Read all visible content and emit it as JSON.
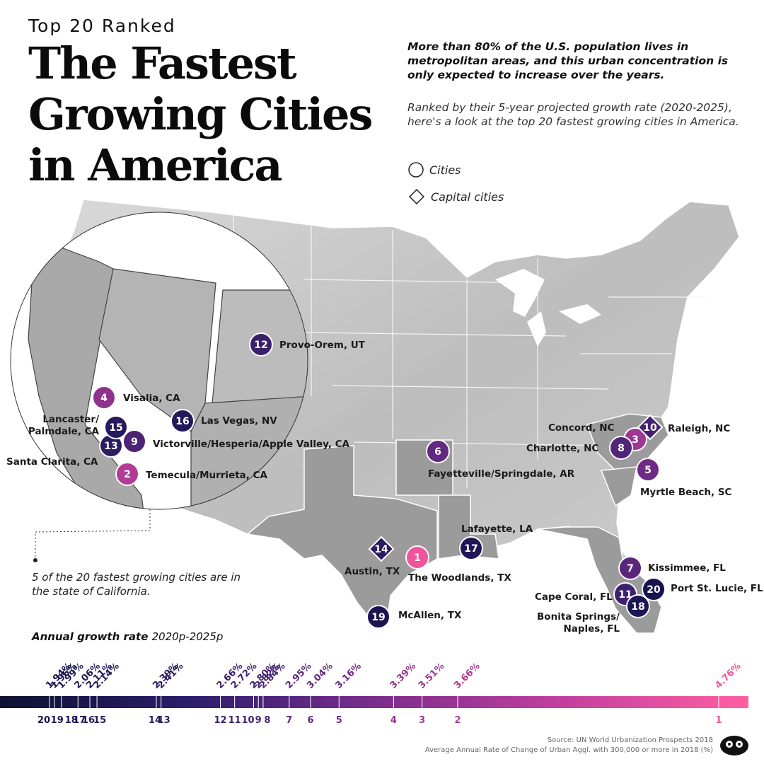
{
  "header": {
    "kicker": "Top 20 Ranked",
    "title_line1": "The Fastest",
    "title_line2": "Growing Cities",
    "title_line3": "in America",
    "lead": "More than 80% of the U.S. population lives in metropolitan areas, and this urban concentration is only expected to increase over the years.",
    "description": "Ranked by their 5-year projected growth rate (2020-2025), here's a look at the top 20 fastest growing cities in America."
  },
  "legend": {
    "cities": "Cities",
    "capitals": "Capital cities"
  },
  "map": {
    "callout_note": "5 of the 20 fastest growing cities are in the state of California.",
    "cities": [
      {
        "rank": 1,
        "name": "The Woodlands, TX",
        "growth": "4.76%",
        "capital": false,
        "color": "#f0549a"
      },
      {
        "rank": 2,
        "name": "Temecula/Murrieta, CA",
        "growth": "3.66%",
        "capital": false,
        "color": "#b03c98"
      },
      {
        "rank": 3,
        "name": "Concord, NC",
        "growth": "3.51%",
        "capital": false,
        "color": "#9c3793"
      },
      {
        "rank": 4,
        "name": "Visalia, CA",
        "growth": "3.39%",
        "capital": false,
        "color": "#8e338d"
      },
      {
        "rank": 5,
        "name": "Myrtle Beach, SC",
        "growth": "3.16%",
        "capital": false,
        "color": "#6e2a84"
      },
      {
        "rank": 6,
        "name": "Fayetteville/Springdale, AR",
        "growth": "3.04%",
        "capital": false,
        "color": "#63287f"
      },
      {
        "rank": 7,
        "name": "Kissimmee, FL",
        "growth": "2.95%",
        "capital": false,
        "color": "#5a267b"
      },
      {
        "rank": 8,
        "name": "Charlotte, NC",
        "growth": "2.84%",
        "capital": false,
        "color": "#512577"
      },
      {
        "rank": 9,
        "name": "Victorville/Hesperia/Apple Valley, CA",
        "growth": "2.82%",
        "capital": false,
        "color": "#4c2475"
      },
      {
        "rank": 10,
        "name": "Raleigh, NC",
        "growth": "2.80%",
        "capital": true,
        "color": "#432271"
      },
      {
        "rank": 11,
        "name": "Cape Coral, FL",
        "growth": "2.72%",
        "capital": false,
        "color": "#3e216e"
      },
      {
        "rank": 12,
        "name": "Provo-Orem, UT",
        "growth": "2.66%",
        "capital": false,
        "color": "#3a206b"
      },
      {
        "rank": 13,
        "name": "Santa Clarita, CA",
        "growth": "2.41%",
        "capital": false,
        "color": "#2e1c63"
      },
      {
        "rank": 14,
        "name": "Austin, TX",
        "growth": "2.39%",
        "capital": true,
        "color": "#2b1b61"
      },
      {
        "rank": 15,
        "name": "Lancaster/Palmdale, CA",
        "growth": "2.14%",
        "capital": false,
        "color": "#26195c"
      },
      {
        "rank": 16,
        "name": "Las Vegas, NV",
        "growth": "2.11%",
        "capital": false,
        "color": "#23185a"
      },
      {
        "rank": 17,
        "name": "Lafayette, LA",
        "growth": "2.06%",
        "capital": false,
        "color": "#201757"
      },
      {
        "rank": 18,
        "name": "Bonita Springs/Naples, FL",
        "growth": "1.99%",
        "capital": false,
        "color": "#1d1654"
      },
      {
        "rank": 19,
        "name": "McAllen, TX",
        "growth": "1.96%",
        "capital": false,
        "color": "#1a1551"
      },
      {
        "rank": 20,
        "name": "Port St. Lucie, FL",
        "growth": "1.94%",
        "capital": false,
        "color": "#18144e"
      }
    ]
  },
  "scale": {
    "title": "Annual growth rate",
    "subtitle": "2020p-2025p",
    "min": 1.94,
    "max": 4.76,
    "gradient_colors": [
      "#0d1230",
      "#2b1d6b",
      "#7a2d8c",
      "#c23f9e",
      "#ff5fa2"
    ]
  },
  "footer": {
    "source": "Source: UN World Urbanization Prospects 2018",
    "note": "Average Annual Rate of Change of Urban Aggl. with 300,000 or more in 2018 (%)"
  }
}
